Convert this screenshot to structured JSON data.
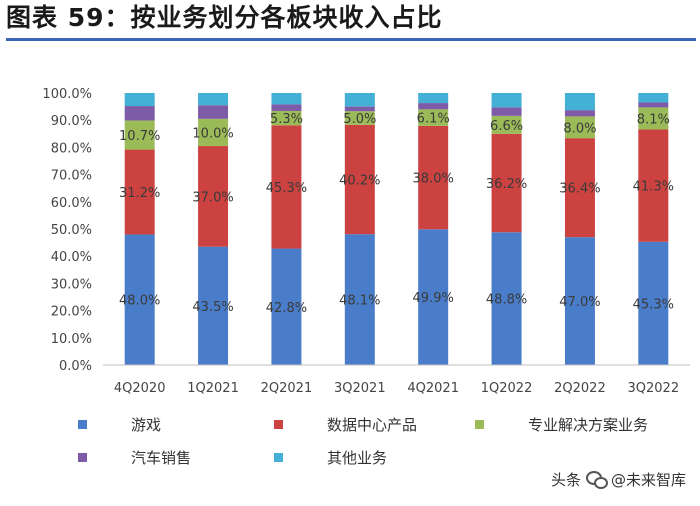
{
  "title": "图表 59：按业务划分各板块收入占比",
  "chart_data": {
    "type": "bar",
    "stacked": true,
    "categories": [
      "4Q2020",
      "1Q2021",
      "2Q2021",
      "3Q2021",
      "4Q2021",
      "1Q2022",
      "2Q2022",
      "3Q2022"
    ],
    "series": [
      {
        "name": "游戏",
        "color": "#4a7dc9",
        "values": [
          48.0,
          43.5,
          42.8,
          48.1,
          49.9,
          48.8,
          47.0,
          45.3
        ],
        "labels": [
          "48.0%",
          "43.5%",
          "42.8%",
          "48.1%",
          "49.9%",
          "48.8%",
          "47.0%",
          "45.3%"
        ]
      },
      {
        "name": "数据中心产品",
        "color": "#cc4240",
        "values": [
          31.2,
          37.0,
          45.3,
          40.2,
          38.0,
          36.2,
          36.4,
          41.3
        ],
        "labels": [
          "31.2%",
          "37.0%",
          "45.3%",
          "40.2%",
          "38.0%",
          "36.2%",
          "36.4%",
          "41.3%"
        ]
      },
      {
        "name": "专业解决方案业务",
        "color": "#9bbb59",
        "values": [
          10.7,
          10.0,
          5.3,
          5.0,
          6.1,
          6.6,
          8.0,
          8.1
        ],
        "labels": [
          "10.7%",
          "10.0%",
          "5.3%",
          "5.0%",
          "6.1%",
          "6.6%",
          "8.0%",
          "8.1%"
        ]
      },
      {
        "name": "汽车销售",
        "color": "#7e5ba6",
        "values": [
          5.3,
          5.0,
          2.4,
          1.7,
          2.3,
          3.1,
          2.3,
          1.8
        ]
      },
      {
        "name": "其他业务",
        "color": "#45b0d6",
        "values": [
          4.8,
          4.5,
          4.2,
          5.0,
          3.7,
          5.3,
          6.3,
          3.5
        ]
      }
    ],
    "yticks": [
      "0.0%",
      "10.0%",
      "20.0%",
      "30.0%",
      "40.0%",
      "50.0%",
      "60.0%",
      "70.0%",
      "80.0%",
      "90.0%",
      "100.0%"
    ],
    "ylim": [
      0,
      100
    ],
    "xlabel": "",
    "ylabel": "",
    "grid": false,
    "legend_position": "bottom"
  },
  "watermark": {
    "prefix": "头条",
    "name": "@未来智库"
  }
}
